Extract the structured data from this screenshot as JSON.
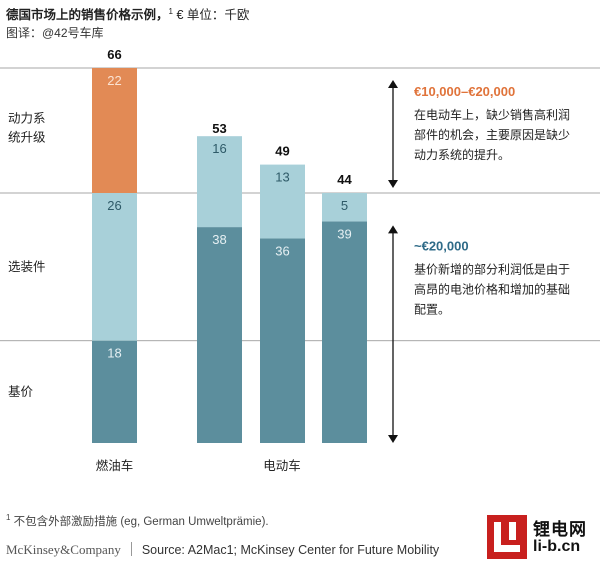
{
  "header": {
    "title": "德国市场上的销售价格示例，",
    "title_sup": "1",
    "title_unit": " € 单位：千欧",
    "subtitle": "图译：@42号车库"
  },
  "chart_data": {
    "type": "bar",
    "stacked": true,
    "unit": "千欧",
    "ylim": [
      0,
      66
    ],
    "categories": [
      "燃油车",
      "电动车",
      "电动车",
      "电动车"
    ],
    "group_labels": [
      "燃油车",
      "电动车"
    ],
    "totals": [
      66,
      53,
      49,
      44
    ],
    "series": [
      {
        "name": "基价",
        "values": [
          18,
          38,
          36,
          39
        ],
        "color": "#5c8e9d"
      },
      {
        "name": "选装件",
        "values": [
          26,
          16,
          13,
          5
        ],
        "color": "#a8d0d9"
      },
      {
        "name": "动力系统升级",
        "values": [
          22,
          0,
          0,
          0
        ],
        "color": "#e28a55"
      }
    ],
    "row_labels": [
      "动力系\n统升级",
      "选装件",
      "基价"
    ],
    "annotations": [
      {
        "heading": "€10,000–€20,000",
        "heading_color": "#e0733a",
        "lines": [
          "在电动车上，缺少销售高利润",
          "部件的机会，主要原因是缺少",
          "动力系统的提升。"
        ]
      },
      {
        "heading": "~€20,000",
        "heading_color": "#2f6b88",
        "lines": [
          "基价新增的部分利润低是由于",
          "高昂的电池价格和增加的基础",
          "配置。"
        ]
      }
    ]
  },
  "footnote": {
    "sup": "1",
    "text": " 不包含外部激励措施 (eg, German Umweltprämie)."
  },
  "footer": {
    "brand": "McKinsey&Company",
    "source": "Source: A2Mac1; McKinsey Center for Future Mobility"
  },
  "logo": {
    "cn": "锂电网",
    "url": "li-b.cn"
  }
}
